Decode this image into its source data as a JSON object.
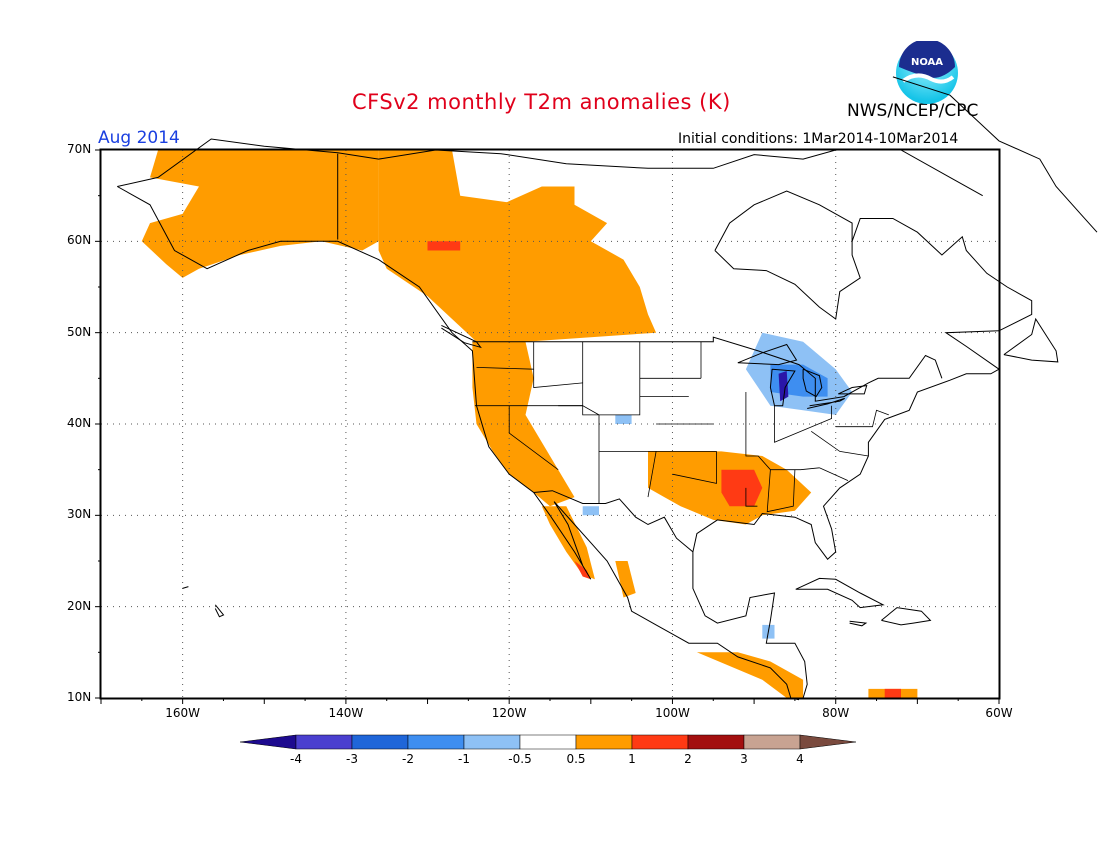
{
  "title": "CFSv2 monthly T2m anomalies (K)",
  "agency": "NWS/NCEP/CPC",
  "logo_text": "NOAA",
  "period": "Aug 2014",
  "initial_conditions": "Initial conditions:  1Mar2014-10Mar2014",
  "map": {
    "lat_range": [
      10,
      70
    ],
    "lon_range": [
      -170,
      -60
    ],
    "lat_labels": [
      "70N",
      "60N",
      "50N",
      "40N",
      "30N",
      "20N",
      "10N"
    ],
    "lon_labels": [
      "160W",
      "140W",
      "120W",
      "100W",
      "80W",
      "60W"
    ],
    "grid": "dotted"
  },
  "colorbar": {
    "labels": [
      "-4",
      "-3",
      "-2",
      "-1",
      "-0.5",
      "0.5",
      "1",
      "2",
      "3",
      "4"
    ],
    "colors": [
      "#1d0a8f",
      "#4a3fcf",
      "#1f66d9",
      "#3e8ef0",
      "#8ec1f5",
      "#ffffff",
      "#ff9c00",
      "#ff3a14",
      "#a30f0f",
      "#c8a392",
      "#7a4a3e"
    ]
  },
  "colors": {
    "warm_05_1": "#ff9c00",
    "warm_1_2": "#ff3a14",
    "warm_2_3": "#a30f0f",
    "cool_05_1": "#8ec1f5",
    "cool_1_2": "#3e8ef0",
    "cool_2_3": "#1f66d9",
    "cool_3_4": "#2a15a8"
  },
  "anomaly_regions": [
    {
      "name": "Alaska and Yukon",
      "level": "warm_05_1",
      "lon": [
        -170,
        -135
      ],
      "lat": [
        58,
        70
      ]
    },
    {
      "name": "Western Canada",
      "level": "warm_05_1",
      "lon": [
        -136,
        -104
      ],
      "lat": [
        49,
        68
      ]
    },
    {
      "name": "US West Coast",
      "level": "warm_05_1",
      "lon": [
        -125,
        -113
      ],
      "lat": [
        32,
        49
      ]
    },
    {
      "name": "Baja California",
      "level": "warm_05_1",
      "lon": [
        -116,
        -109
      ],
      "lat": [
        23,
        31
      ]
    },
    {
      "name": "Southern Plains and Gulf States",
      "level": "warm_05_1",
      "lon": [
        -103,
        -83
      ],
      "lat": [
        29,
        37
      ]
    },
    {
      "name": "Lower Mississippi Valley",
      "level": "warm_1_2",
      "lon": [
        -94,
        -89
      ],
      "lat": [
        31,
        35
      ]
    },
    {
      "name": "British Columbia interior",
      "level": "warm_1_2",
      "lon": [
        -130,
        -126
      ],
      "lat": [
        59,
        60
      ]
    },
    {
      "name": "Great Lakes",
      "level": "cool_05_1",
      "lon": [
        -91,
        -78
      ],
      "lat": [
        41,
        50
      ]
    },
    {
      "name": "Lake Michigan and Huron",
      "level": "cool_3_4",
      "lon": [
        -88,
        -81
      ],
      "lat": [
        43,
        47
      ]
    },
    {
      "name": "Central America",
      "level": "warm_05_1",
      "lon": [
        -97,
        -84
      ],
      "lat": [
        10,
        15
      ]
    }
  ]
}
